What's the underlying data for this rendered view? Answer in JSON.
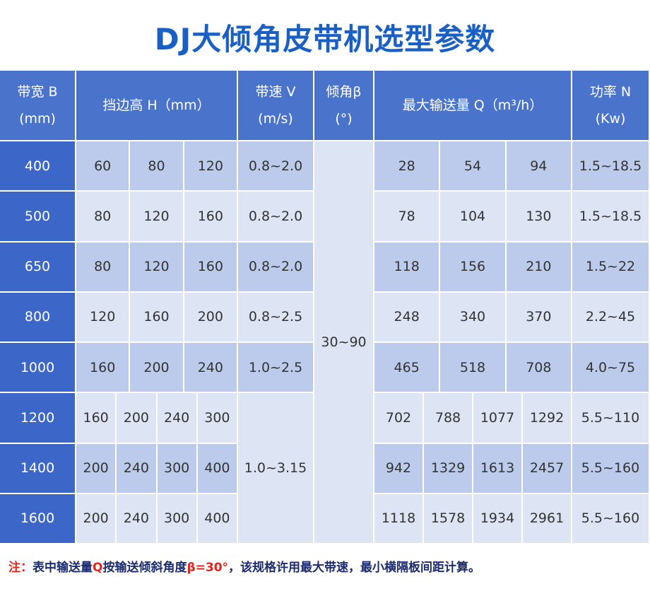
{
  "header": {
    "title": "DJ大倾角皮带机选型参数"
  },
  "table": {
    "headers": {
      "width": [
        "带宽 B",
        "(mm)"
      ],
      "height": "挡边高 H（mm）",
      "speed": [
        "带速 V",
        "(m/s)"
      ],
      "angle": [
        "倾角β",
        "(°)"
      ],
      "capacity": "最大输送量 Q（m³/h）",
      "power": [
        "功率 N",
        "(Kw)"
      ]
    },
    "angle": "30~90",
    "merged_speed": "1.0~3.15",
    "rows": [
      {
        "width": "400",
        "h": [
          "60",
          "80",
          "120"
        ],
        "v": "0.8~2.0",
        "q": [
          "28",
          "54",
          "94"
        ],
        "n": "1.5~18.5"
      },
      {
        "width": "500",
        "h": [
          "80",
          "120",
          "160"
        ],
        "v": "0.8~2.0",
        "q": [
          "78",
          "104",
          "130"
        ],
        "n": "1.5~18.5"
      },
      {
        "width": "650",
        "h": [
          "80",
          "120",
          "160"
        ],
        "v": "0.8~2.0",
        "q": [
          "118",
          "156",
          "210"
        ],
        "n": "1.5~22"
      },
      {
        "width": "800",
        "h": [
          "120",
          "160",
          "200"
        ],
        "v": "0.8~2.5",
        "q": [
          "248",
          "340",
          "370"
        ],
        "n": "2.2~45"
      },
      {
        "width": "1000",
        "h": [
          "160",
          "200",
          "240"
        ],
        "v": "1.0~2.5",
        "q": [
          "465",
          "518",
          "708"
        ],
        "n": "4.0~75"
      },
      {
        "width": "1200",
        "h": [
          "160",
          "200",
          "240",
          "300"
        ],
        "q": [
          "702",
          "788",
          "1077",
          "1292"
        ],
        "n": "5.5~110"
      },
      {
        "width": "1400",
        "h": [
          "200",
          "240",
          "300",
          "400"
        ],
        "q": [
          "942",
          "1329",
          "1613",
          "2457"
        ],
        "n": "5.5~160"
      },
      {
        "width": "1600",
        "h": [
          "200",
          "240",
          "300",
          "400"
        ],
        "q": [
          "1118",
          "1578",
          "1934",
          "2961"
        ],
        "n": "5.5~160"
      }
    ]
  },
  "footnote": [
    {
      "text": "注：",
      "color": "#e0261c"
    },
    {
      "text": "表中输送量",
      "color": "#1c2a6e"
    },
    {
      "text": "Q",
      "color": "#e0261c"
    },
    {
      "text": "按输送倾斜角度",
      "color": "#1c2a6e"
    },
    {
      "text": "β=30°",
      "color": "#e0261c"
    },
    {
      "text": "，该规格许用最大带速，最小横隔板间距计算。",
      "color": "#1c2a6e"
    }
  ]
}
